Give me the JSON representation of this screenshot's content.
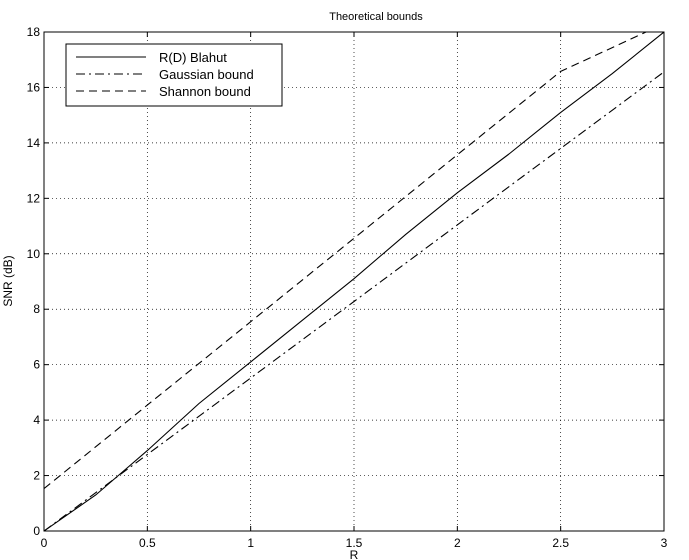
{
  "chart_data": {
    "type": "line",
    "title": "Theoretical bounds",
    "xlabel": "R",
    "ylabel": "SNR (dB)",
    "xlim": [
      0,
      3
    ],
    "ylim": [
      0,
      18
    ],
    "xticks": [
      0,
      0.5,
      1,
      1.5,
      2,
      2.5,
      3
    ],
    "xtick_labels": [
      "0",
      "0.5",
      "1",
      "1.5",
      "2",
      "2.5",
      "3"
    ],
    "yticks": [
      0,
      2,
      4,
      6,
      8,
      10,
      12,
      14,
      16,
      18
    ],
    "ytick_labels": [
      "0",
      "2",
      "4",
      "6",
      "8",
      "10",
      "12",
      "14",
      "16",
      "18"
    ],
    "grid": true,
    "legend_position": "top-left",
    "series": [
      {
        "name": "R(D) Blahut",
        "line_style": "solid",
        "color": "#000000",
        "x": [
          0,
          0.25,
          0.5,
          0.75,
          1,
          1.25,
          1.5,
          1.75,
          2,
          2.25,
          2.5,
          2.75,
          3
        ],
        "y": [
          0,
          1.3,
          2.9,
          4.6,
          6.1,
          7.6,
          9.1,
          10.7,
          12.2,
          13.6,
          15.1,
          16.5,
          18.0
        ]
      },
      {
        "name": "Gaussian bound",
        "line_style": "dashdot",
        "color": "#000000",
        "x": [
          0,
          0.5,
          1,
          1.5,
          2,
          2.5,
          3
        ],
        "y": [
          0,
          2.76,
          5.52,
          8.28,
          11.04,
          13.8,
          16.56
        ]
      },
      {
        "name": "Shannon bound",
        "line_style": "dashed",
        "color": "#000000",
        "x": [
          0,
          0.5,
          1,
          1.5,
          2,
          2.5,
          3
        ],
        "y": [
          1.53,
          4.54,
          7.55,
          10.56,
          13.57,
          16.58,
          18.3
        ]
      }
    ]
  }
}
